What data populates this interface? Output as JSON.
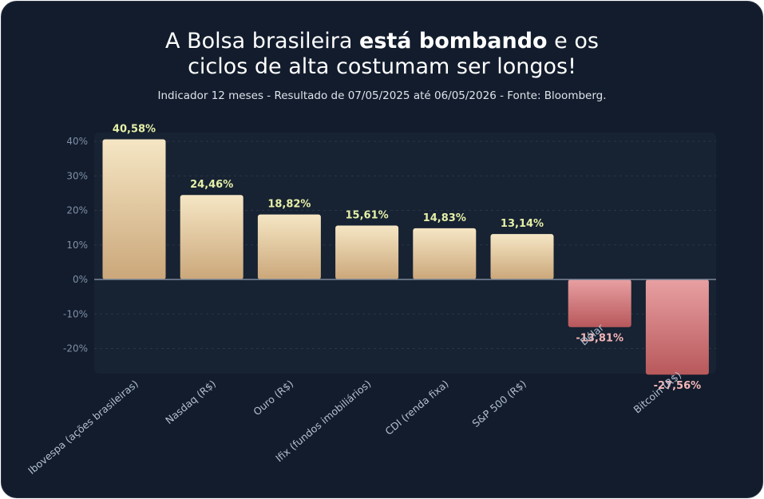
{
  "header": {
    "title_line1_a": "A Bolsa brasileira ",
    "title_line1_bold": "está bombando",
    "title_line1_b": " e os",
    "title_line2": "ciclos de alta costumam ser longos!",
    "subtitle": "Indicador 12 meses - Resultado de 07/05/2025 até 06/05/2026  - Fonte: Bloomberg."
  },
  "colors": {
    "background": "#121c2c",
    "plot_background": "#172232",
    "positive_top": "#f5e6c4",
    "positive_bottom": "#cba77a",
    "negative_top": "#e8a0a2",
    "negative_bottom": "#b8585b",
    "positive_label": "#e6f0a8",
    "negative_label": "#f4b6b6",
    "axis_text": "#7f8fa8",
    "category_text": "#b3bfd1"
  },
  "chart_data": {
    "type": "bar",
    "categories": [
      "Ibovespa (ações brasileiras)",
      "Nasdaq (R$)",
      "Ouro (R$)",
      "Ifix (fundos imobiliários)",
      "CDI (renda fixa)",
      "S&P 500 (R$)",
      "Dólar",
      "Bitcoin (R$)"
    ],
    "values": [
      40.58,
      24.46,
      18.82,
      15.61,
      14.83,
      13.14,
      -13.81,
      -27.56
    ],
    "value_labels": [
      "40,58%",
      "24,46%",
      "18,82%",
      "15,61%",
      "14,83%",
      "13,14%",
      "-13,81%",
      "-27,56%"
    ],
    "y_ticks": [
      40,
      30,
      20,
      10,
      0,
      -10,
      -20
    ],
    "y_tick_labels": [
      "40%",
      "30%",
      "20%",
      "10%",
      "0%",
      "-10%",
      "-20%"
    ],
    "ylim": [
      -27.56,
      40.58
    ],
    "grid": true
  }
}
